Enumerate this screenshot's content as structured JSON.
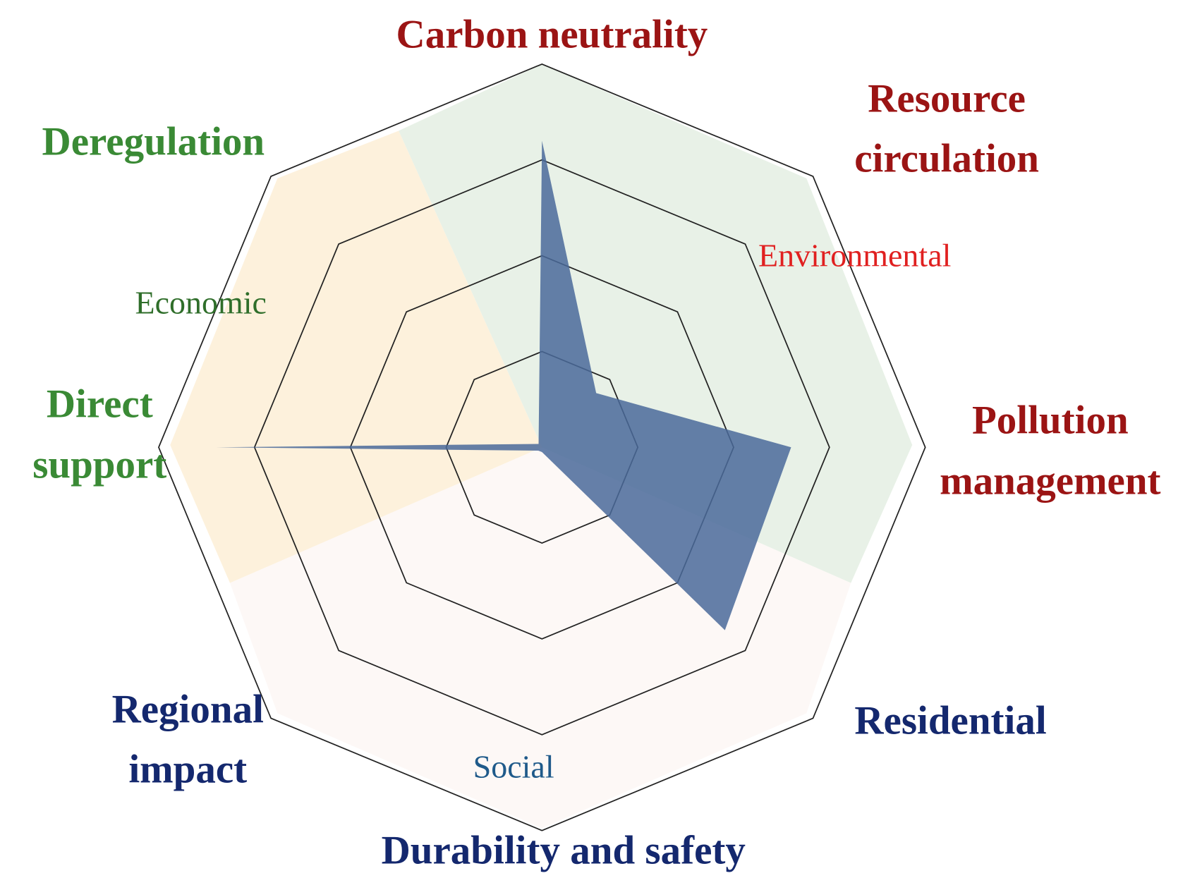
{
  "chart_data": {
    "type": "radar",
    "categories": [
      "Carbon neutrality",
      "Resource circulation",
      "Pollution management",
      "Residential",
      "Durability and safety",
      "Regional impact",
      "Direct support",
      "Deregulation"
    ],
    "category_colors": [
      "#9b1414",
      "#9b1414",
      "#9b1414",
      "#14286e",
      "#14286e",
      "#14286e",
      "#3a8a35",
      "#3a8a35"
    ],
    "values": [
      3.2,
      0.8,
      2.6,
      2.7,
      0.05,
      0.05,
      3.4,
      0.05
    ],
    "color": "#4a6a9a",
    "rlim": [
      0,
      4
    ],
    "rticks": [
      1,
      2,
      3,
      4
    ],
    "groups": [
      {
        "name": "Environmental",
        "color": "#e02020"
      },
      {
        "name": "Economic",
        "color": "#2f6e2a"
      },
      {
        "name": "Social",
        "color": "#1f5a8a"
      }
    ]
  }
}
